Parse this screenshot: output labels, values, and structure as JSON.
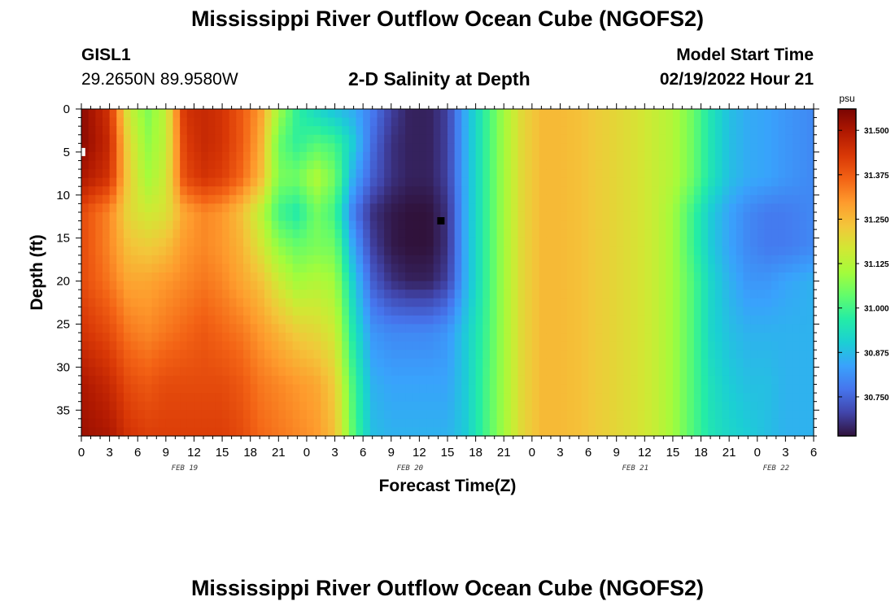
{
  "header": {
    "main_title": "Mississippi River Outflow Ocean Cube (NGOFS2)",
    "station_id": "GISL1",
    "station_coords": "29.2650N  89.9580W",
    "subtitle": "2-D Salinity at Depth",
    "start_label": "Model Start Time",
    "start_value": "02/19/2022 Hour 21"
  },
  "footer": {
    "repeat_title": "Mississippi River Outflow Ocean Cube (NGOFS2)"
  },
  "chart_data": {
    "type": "heatmap",
    "title": "2-D Salinity at Depth",
    "xlabel": "Forecast Time(Z)",
    "ylabel": "Depth (ft)",
    "x_range_hours": [
      0,
      78
    ],
    "x_tick_step_hours": 3,
    "x_tick_labels": [
      "0",
      "3",
      "6",
      "9",
      "12",
      "15",
      "18",
      "21",
      "0",
      "3",
      "6",
      "9",
      "12",
      "15",
      "18",
      "21",
      "0",
      "3",
      "6",
      "9",
      "12",
      "15",
      "18",
      "21",
      "0",
      "3",
      "6"
    ],
    "date_labels": [
      {
        "label": "FEB 19",
        "hour": 11
      },
      {
        "label": "FEB 20",
        "hour": 35
      },
      {
        "label": "FEB 21",
        "hour": 59
      },
      {
        "label": "FEB 22",
        "hour": 74
      }
    ],
    "ylim": [
      0,
      38
    ],
    "y_ticks": [
      0,
      5,
      10,
      15,
      20,
      25,
      30,
      35
    ],
    "colorbar": {
      "unit": "psu",
      "min": 30.64,
      "max": 31.56,
      "ticks": [
        31.5,
        31.375,
        31.25,
        31.125,
        31.0,
        30.875,
        30.75
      ],
      "tick_labels": [
        "31.500",
        "31.375",
        "31.250",
        "31.125",
        "31.000",
        "30.875",
        "30.750"
      ],
      "colormap": [
        "#30123b",
        "#4145ab",
        "#4675ed",
        "#39a2fc",
        "#1bcfd4",
        "#24eca6",
        "#61fc6c",
        "#a4fc3b",
        "#d1e834",
        "#f3c63a",
        "#fe9b2d",
        "#f36315",
        "#d93806",
        "#b11901",
        "#7a0402"
      ]
    },
    "depth_levels_ft": [
      0,
      4,
      8,
      12,
      16,
      20,
      26,
      32,
      38
    ],
    "time_hours": [
      0,
      3,
      5,
      7,
      9,
      11,
      13,
      15,
      17,
      19,
      21,
      23,
      25,
      27,
      29,
      31,
      33,
      35,
      37,
      39,
      41,
      43,
      45,
      47,
      49,
      51,
      53,
      55,
      57,
      59,
      61,
      63,
      65,
      67,
      69,
      71,
      73,
      75,
      78
    ],
    "salinity_psu": [
      [
        31.54,
        31.44,
        31.16,
        31.06,
        31.14,
        31.44,
        31.46,
        31.44,
        31.38,
        31.3,
        31.1,
        30.98,
        30.92,
        30.88,
        30.85,
        30.78,
        30.7,
        30.66,
        30.66,
        30.7,
        30.86,
        30.98,
        31.1,
        31.2,
        31.25,
        31.25,
        31.24,
        31.22,
        31.2,
        31.18,
        31.15,
        31.12,
        31.05,
        30.95,
        30.88,
        30.85,
        30.84,
        30.82,
        30.8
      ],
      [
        31.54,
        31.46,
        31.2,
        31.08,
        31.14,
        31.42,
        31.46,
        31.44,
        31.38,
        31.28,
        31.04,
        30.98,
        31.02,
        31.0,
        30.9,
        30.76,
        30.68,
        30.66,
        30.66,
        30.7,
        30.86,
        30.98,
        31.1,
        31.2,
        31.25,
        31.25,
        31.24,
        31.22,
        31.2,
        31.18,
        31.15,
        31.12,
        31.05,
        30.95,
        30.88,
        30.85,
        30.84,
        30.82,
        30.8
      ],
      [
        31.5,
        31.44,
        31.22,
        31.1,
        31.16,
        31.4,
        31.44,
        31.42,
        31.36,
        31.26,
        31.06,
        31.05,
        31.12,
        31.05,
        30.85,
        30.74,
        30.68,
        30.66,
        30.66,
        30.7,
        30.86,
        30.98,
        31.1,
        31.2,
        31.25,
        31.25,
        31.24,
        31.22,
        31.2,
        31.18,
        31.15,
        31.12,
        31.05,
        30.95,
        30.88,
        30.85,
        30.84,
        30.82,
        30.8
      ],
      [
        31.4,
        31.32,
        31.2,
        31.16,
        31.18,
        31.28,
        31.32,
        31.3,
        31.24,
        31.14,
        31.0,
        30.96,
        31.05,
        31.0,
        30.78,
        30.68,
        30.65,
        30.64,
        30.64,
        30.68,
        30.86,
        30.98,
        31.1,
        31.2,
        31.25,
        31.25,
        31.24,
        31.22,
        31.2,
        31.18,
        31.15,
        31.1,
        31.0,
        30.9,
        30.84,
        30.8,
        30.78,
        30.78,
        30.8
      ],
      [
        31.4,
        31.32,
        31.24,
        31.22,
        31.24,
        31.3,
        31.32,
        31.3,
        31.26,
        31.18,
        31.08,
        31.04,
        31.06,
        31.05,
        30.84,
        30.7,
        30.65,
        30.64,
        30.64,
        30.68,
        30.86,
        30.98,
        31.1,
        31.2,
        31.25,
        31.25,
        31.24,
        31.22,
        31.2,
        31.18,
        31.15,
        31.1,
        31.0,
        30.9,
        30.84,
        30.8,
        30.78,
        30.78,
        30.8
      ],
      [
        31.4,
        31.34,
        31.28,
        31.28,
        31.3,
        31.32,
        31.34,
        31.32,
        31.28,
        31.24,
        31.16,
        31.1,
        31.12,
        31.1,
        30.9,
        30.74,
        30.68,
        30.66,
        30.66,
        30.7,
        30.86,
        30.98,
        31.1,
        31.2,
        31.25,
        31.25,
        31.24,
        31.22,
        31.2,
        31.18,
        31.15,
        31.1,
        31.02,
        30.92,
        30.86,
        30.82,
        30.82,
        30.84,
        30.86
      ],
      [
        31.44,
        31.4,
        31.34,
        31.32,
        31.34,
        31.36,
        31.38,
        31.36,
        31.34,
        31.3,
        31.26,
        31.22,
        31.2,
        31.16,
        30.95,
        30.82,
        30.8,
        30.8,
        30.8,
        30.82,
        30.9,
        30.99,
        31.1,
        31.2,
        31.25,
        31.25,
        31.24,
        31.22,
        31.2,
        31.18,
        31.15,
        31.1,
        31.02,
        30.92,
        30.88,
        30.86,
        30.86,
        30.86,
        30.86
      ],
      [
        31.5,
        31.46,
        31.4,
        31.38,
        31.4,
        31.4,
        31.4,
        31.4,
        31.38,
        31.34,
        31.32,
        31.3,
        31.28,
        31.22,
        31.0,
        30.86,
        30.84,
        30.84,
        30.84,
        30.84,
        30.9,
        31.0,
        31.1,
        31.2,
        31.25,
        31.25,
        31.24,
        31.22,
        31.2,
        31.18,
        31.15,
        31.1,
        31.02,
        30.94,
        30.9,
        30.88,
        30.88,
        30.86,
        30.86
      ],
      [
        31.52,
        31.5,
        31.44,
        31.42,
        31.42,
        31.42,
        31.42,
        31.42,
        31.4,
        31.36,
        31.34,
        31.32,
        31.3,
        31.24,
        31.02,
        30.88,
        30.86,
        30.86,
        30.86,
        30.86,
        30.9,
        31.0,
        31.1,
        31.2,
        31.25,
        31.25,
        31.24,
        31.22,
        31.2,
        31.18,
        31.15,
        31.1,
        31.02,
        30.95,
        30.92,
        30.9,
        30.88,
        30.86,
        30.86
      ]
    ],
    "markers": [
      {
        "hour": 38.3,
        "depth_ft": 13,
        "color": "#000000"
      },
      {
        "hour": 0.2,
        "depth_ft": 5,
        "color": "#ffffff"
      }
    ]
  }
}
